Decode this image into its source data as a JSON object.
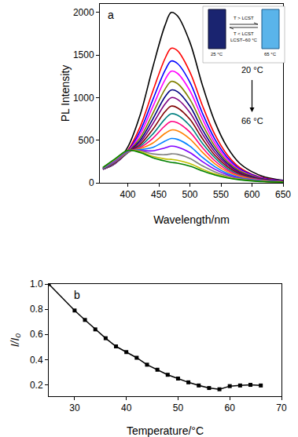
{
  "chart_data": [
    {
      "type": "line",
      "panel": "a",
      "x_label": "Wavelength/nm",
      "y_label": "PL Intensity",
      "x": [
        360,
        380,
        400,
        420,
        440,
        460,
        470,
        480,
        500,
        520,
        540,
        560,
        580,
        600,
        620,
        650
      ],
      "series": [
        {
          "color": "#000000",
          "values": [
            160,
            230,
            420,
            800,
            1350,
            1850,
            2000,
            1960,
            1650,
            1150,
            720,
            420,
            230,
            130,
            70,
            30
          ]
        },
        {
          "color": "#ff0000",
          "values": [
            160,
            230,
            380,
            660,
            1070,
            1460,
            1580,
            1550,
            1300,
            910,
            570,
            330,
            180,
            100,
            55,
            25
          ]
        },
        {
          "color": "#0000ff",
          "values": [
            160,
            230,
            370,
            610,
            970,
            1320,
            1430,
            1400,
            1180,
            820,
            515,
            300,
            165,
            95,
            50,
            25
          ]
        },
        {
          "color": "#ff00ff",
          "values": [
            160,
            235,
            365,
            570,
            890,
            1210,
            1310,
            1285,
            1080,
            755,
            470,
            275,
            150,
            85,
            45,
            20
          ]
        },
        {
          "color": "#808000",
          "values": [
            160,
            235,
            360,
            530,
            810,
            1100,
            1190,
            1165,
            980,
            685,
            430,
            250,
            140,
            80,
            42,
            20
          ]
        },
        {
          "color": "#000080",
          "values": [
            165,
            240,
            355,
            500,
            745,
            1010,
            1090,
            1070,
            900,
            625,
            395,
            230,
            125,
            72,
            40,
            18
          ]
        },
        {
          "color": "#800080",
          "values": [
            165,
            240,
            355,
            475,
            690,
            925,
            1000,
            980,
            825,
            575,
            360,
            210,
            115,
            65,
            36,
            16
          ]
        },
        {
          "color": "#800000",
          "values": [
            165,
            245,
            355,
            450,
            625,
            835,
            900,
            880,
            745,
            520,
            325,
            190,
            105,
            60,
            33,
            15
          ]
        },
        {
          "color": "#008080",
          "values": [
            165,
            245,
            355,
            430,
            570,
            750,
            810,
            795,
            670,
            465,
            295,
            170,
            95,
            55,
            30,
            14
          ]
        },
        {
          "color": "#ff0080",
          "values": [
            170,
            250,
            360,
            415,
            520,
            670,
            720,
            705,
            595,
            415,
            260,
            150,
            85,
            50,
            28,
            13
          ]
        },
        {
          "color": "#ff8000",
          "values": [
            170,
            255,
            360,
            400,
            465,
            580,
            620,
            610,
            515,
            360,
            225,
            130,
            75,
            44,
            25,
            12
          ]
        },
        {
          "color": "#0080ff",
          "values": [
            170,
            260,
            365,
            390,
            415,
            490,
            520,
            510,
            430,
            300,
            190,
            110,
            63,
            38,
            22,
            11
          ]
        },
        {
          "color": "#8000ff",
          "values": [
            175,
            265,
            370,
            380,
            375,
            410,
            430,
            420,
            355,
            250,
            160,
            95,
            55,
            33,
            20,
            10
          ]
        },
        {
          "color": "#808080",
          "values": [
            175,
            270,
            375,
            375,
            340,
            330,
            340,
            335,
            285,
            200,
            130,
            78,
            47,
            28,
            17,
            9
          ]
        },
        {
          "color": "#c0c000",
          "values": [
            180,
            280,
            380,
            365,
            310,
            280,
            275,
            265,
            225,
            160,
            105,
            65,
            40,
            25,
            15,
            8
          ]
        },
        {
          "color": "#008000",
          "values": [
            180,
            285,
            380,
            355,
            295,
            255,
            240,
            230,
            195,
            140,
            92,
            58,
            36,
            22,
            14,
            7
          ]
        }
      ],
      "xlim": [
        355,
        650
      ],
      "ylim": [
        0,
        2100
      ],
      "xticks": [
        400,
        450,
        500,
        550,
        600,
        650
      ],
      "yticks": [
        0,
        500,
        1000,
        1500,
        2000
      ],
      "grid": false,
      "annotations": {
        "start": "20 °C",
        "end": "66 °C",
        "inset_left": "25 °C",
        "inset_right": "65 °C",
        "inset_forward": "T > LCST",
        "inset_backward": "T < LCST",
        "inset_note": "LCST~60 °C"
      }
    },
    {
      "type": "line",
      "panel": "b",
      "x_label": "Temperature/°C",
      "y_label": "I/I₀",
      "x": [
        25,
        30,
        32,
        34,
        36,
        38,
        40,
        42,
        44,
        46,
        48,
        50,
        52,
        54,
        56,
        58,
        60,
        62,
        64,
        66
      ],
      "values": [
        1.0,
        0.79,
        0.715,
        0.64,
        0.57,
        0.505,
        0.46,
        0.415,
        0.36,
        0.32,
        0.28,
        0.25,
        0.22,
        0.195,
        0.175,
        0.165,
        0.19,
        0.195,
        0.2,
        0.195
      ],
      "color": "#000000",
      "marker": "square",
      "xlim": [
        25,
        70
      ],
      "ylim": [
        0.11,
        1.0
      ],
      "xticks": [
        30,
        40,
        50,
        60,
        70
      ],
      "yticks": [
        0.2,
        0.4,
        0.6,
        0.8,
        {
          "value": 1.0,
          "label": "1.0"
        }
      ],
      "grid": false
    }
  ]
}
